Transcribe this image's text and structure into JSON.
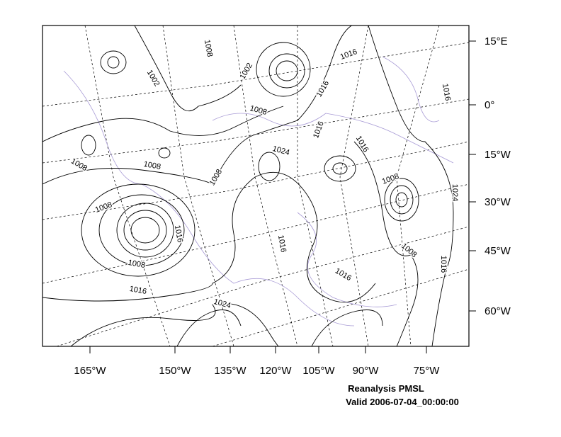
{
  "map": {
    "lat_labels": [
      "15°E",
      "0°",
      "15°W",
      "30°W",
      "45°W",
      "60°W"
    ],
    "lon_labels": [
      "165°W",
      "150°W",
      "135°W",
      "120°W",
      "105°W",
      "90°W",
      "75°W"
    ],
    "contour_labels": [
      "1008",
      "1002",
      "1002",
      "1016",
      "1016",
      "1008",
      "1016",
      "1016",
      "1016",
      "1024",
      "1008",
      "1008",
      "1008",
      "1008",
      "1024",
      "1008",
      "1016",
      "1016",
      "1008",
      "1008",
      "1016",
      "1016",
      "1016",
      "1024"
    ],
    "caption": {
      "title": "Reanalysis PMSL",
      "valid": "Valid 2006-07-04_00:00:00"
    }
  }
}
